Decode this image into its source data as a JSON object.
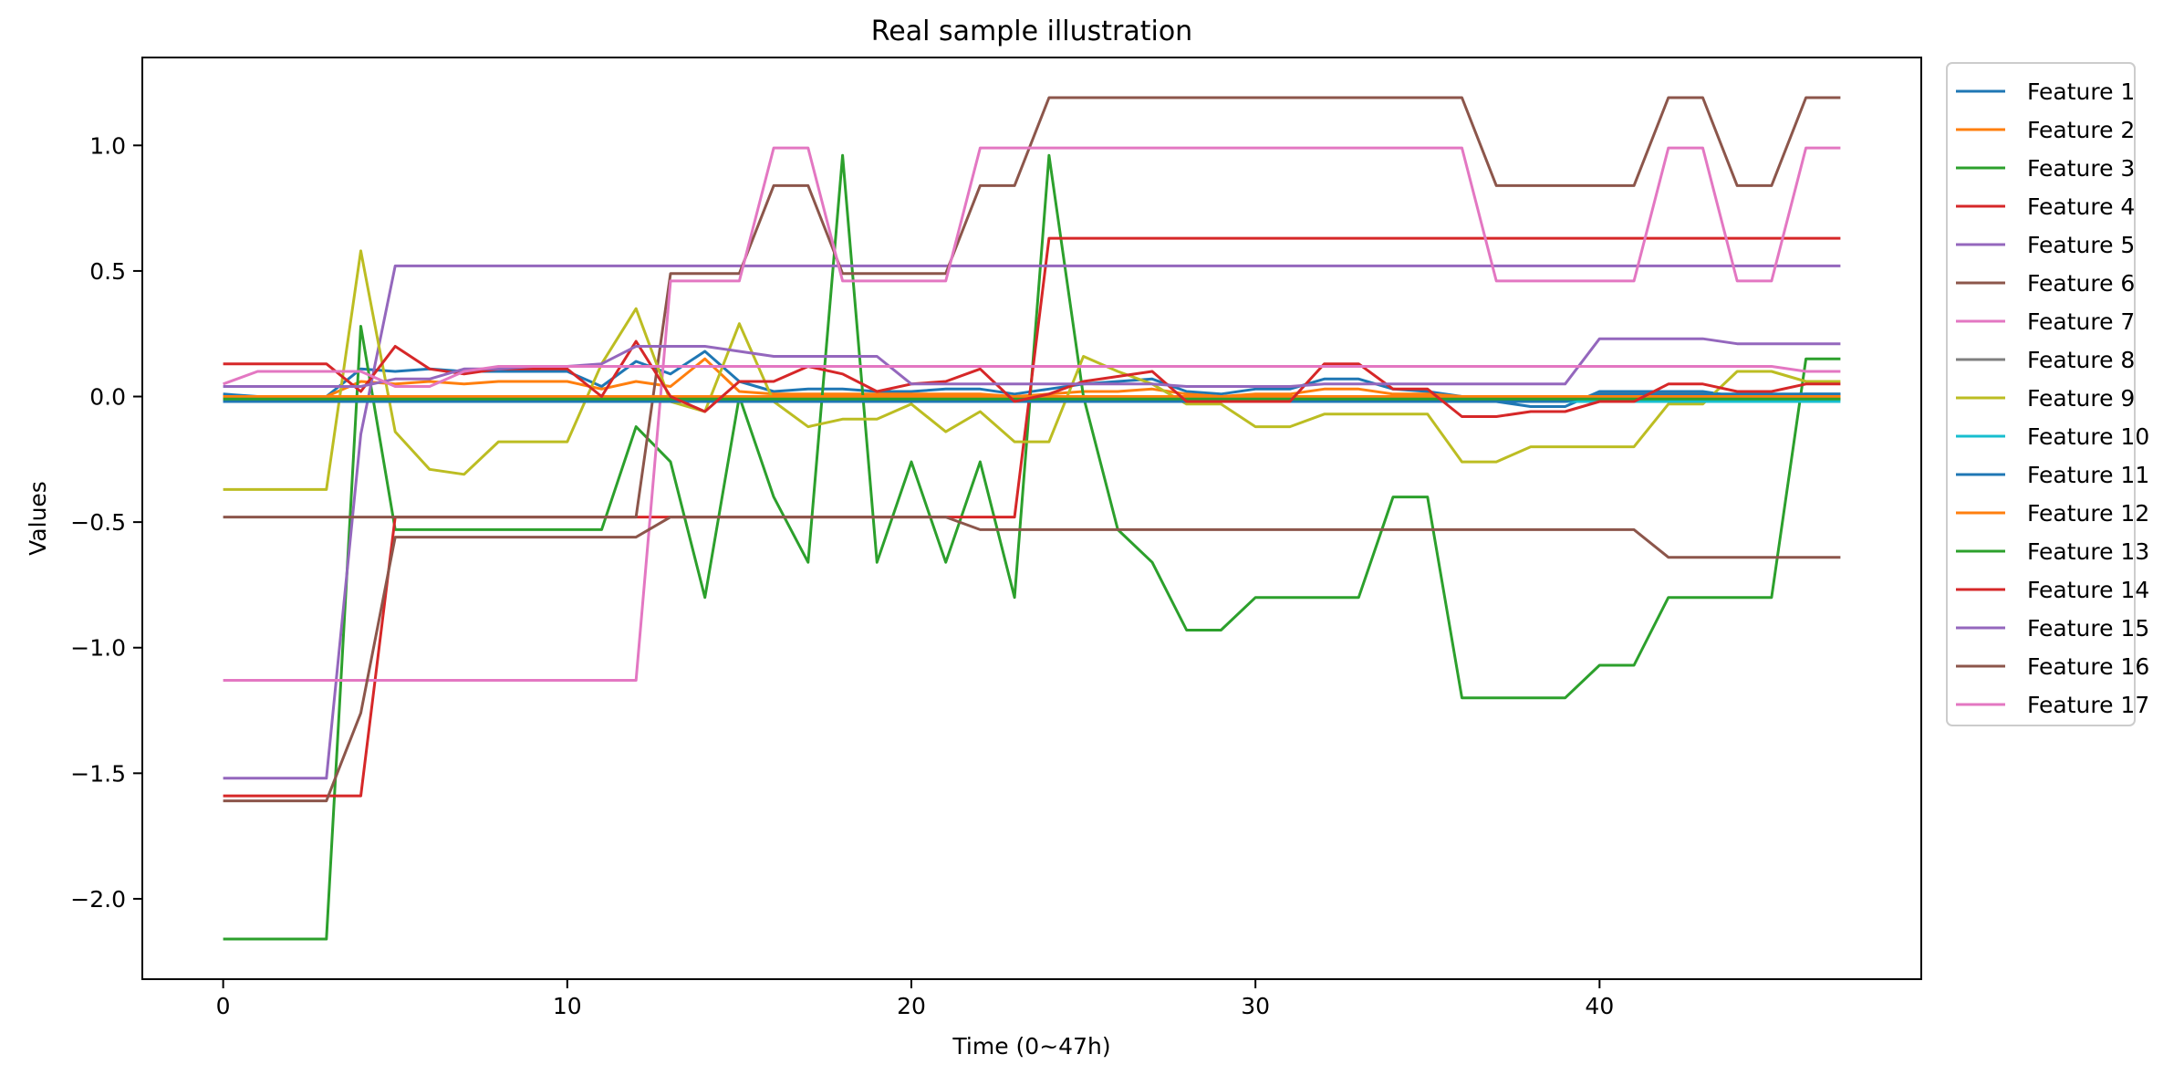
{
  "chart_data": {
    "type": "line",
    "title": "Real sample illustration",
    "xlabel": "Time (0~47h)",
    "ylabel": "Values",
    "xlim": [
      -2.35,
      49.35
    ],
    "ylim": [
      -2.32,
      1.35
    ],
    "xticks": [
      0,
      10,
      20,
      30,
      40
    ],
    "yticks": [
      -2.0,
      -1.5,
      -1.0,
      -0.5,
      0.0,
      0.5,
      1.0
    ],
    "ytick_labels": [
      "−2.0",
      "−1.5",
      "−1.0",
      "−0.5",
      "0.0",
      "0.5",
      "1.0"
    ],
    "grid": false,
    "legend_position": "outside-right-top",
    "series": [
      {
        "name": "Feature 1",
        "color": "#1f77b4",
        "values": [
          0.01,
          0.0,
          0.0,
          0.0,
          0.11,
          0.1,
          0.11,
          0.1,
          0.1,
          0.1,
          0.1,
          0.04,
          0.14,
          0.09,
          0.18,
          0.06,
          0.02,
          0.03,
          0.03,
          0.02,
          0.02,
          0.03,
          0.03,
          0.01,
          0.03,
          0.05,
          0.06,
          0.07,
          0.02,
          0.01,
          0.03,
          0.03,
          0.07,
          0.07,
          0.03,
          0.02,
          0.0,
          -0.02,
          -0.04,
          -0.04,
          0.02,
          0.02,
          0.02,
          0.02,
          0.0,
          0.0,
          0.01,
          0.01
        ]
      },
      {
        "name": "Feature 2",
        "color": "#ff7f0e",
        "values": [
          0.0,
          0.0,
          0.0,
          0.0,
          0.06,
          0.05,
          0.06,
          0.05,
          0.06,
          0.06,
          0.06,
          0.03,
          0.06,
          0.04,
          0.15,
          0.02,
          0.01,
          0.01,
          0.01,
          0.01,
          0.01,
          0.01,
          0.01,
          0.0,
          0.01,
          0.02,
          0.02,
          0.03,
          0.01,
          0.0,
          0.01,
          0.01,
          0.03,
          0.03,
          0.01,
          0.01,
          0.0,
          -0.01,
          -0.02,
          -0.02,
          0.01,
          0.01,
          0.01,
          0.01,
          0.0,
          0.0,
          0.0,
          0.0
        ]
      },
      {
        "name": "Feature 3",
        "color": "#2ca02c",
        "values": [
          -2.16,
          -2.16,
          -2.16,
          -2.16,
          0.28,
          -0.53,
          -0.53,
          -0.53,
          -0.53,
          -0.53,
          -0.53,
          -0.53,
          -0.12,
          -0.26,
          -0.8,
          0.0,
          -0.4,
          -0.66,
          0.96,
          -0.66,
          -0.26,
          -0.66,
          -0.26,
          -0.8,
          0.96,
          0.0,
          -0.53,
          -0.66,
          -0.93,
          -0.93,
          -0.8,
          -0.8,
          -0.8,
          -0.8,
          -0.4,
          -0.4,
          -1.2,
          -1.2,
          -1.2,
          -1.2,
          -1.07,
          -1.07,
          -0.8,
          -0.8,
          -0.8,
          -0.8,
          0.15,
          0.15
        ]
      },
      {
        "name": "Feature 4",
        "color": "#d62728",
        "values": [
          -1.59,
          -1.59,
          -1.59,
          -1.59,
          -1.59,
          -0.48,
          -0.48,
          -0.48,
          -0.48,
          -0.48,
          -0.48,
          -0.48,
          -0.48,
          -0.48,
          -0.48,
          -0.48,
          -0.48,
          -0.48,
          -0.48,
          -0.48,
          -0.48,
          -0.48,
          -0.48,
          -0.48,
          0.63,
          0.63,
          0.63,
          0.63,
          0.63,
          0.63,
          0.63,
          0.63,
          0.63,
          0.63,
          0.63,
          0.63,
          0.63,
          0.63,
          0.63,
          0.63,
          0.63,
          0.63,
          0.63,
          0.63,
          0.63,
          0.63,
          0.63,
          0.63
        ]
      },
      {
        "name": "Feature 5",
        "color": "#9467bd",
        "values": [
          -1.52,
          -1.52,
          -1.52,
          -1.52,
          -0.15,
          0.52,
          0.52,
          0.52,
          0.52,
          0.52,
          0.52,
          0.52,
          0.52,
          0.52,
          0.52,
          0.52,
          0.52,
          0.52,
          0.52,
          0.52,
          0.52,
          0.52,
          0.52,
          0.52,
          0.52,
          0.52,
          0.52,
          0.52,
          0.52,
          0.52,
          0.52,
          0.52,
          0.52,
          0.52,
          0.52,
          0.52,
          0.52,
          0.52,
          0.52,
          0.52,
          0.52,
          0.52,
          0.52,
          0.52,
          0.52,
          0.52,
          0.52,
          0.52
        ]
      },
      {
        "name": "Feature 6",
        "color": "#8c564b",
        "values": [
          -0.48,
          -0.48,
          -0.48,
          -0.48,
          -0.48,
          -0.48,
          -0.48,
          -0.48,
          -0.48,
          -0.48,
          -0.48,
          -0.48,
          -0.48,
          0.49,
          0.49,
          0.49,
          0.84,
          0.84,
          0.49,
          0.49,
          0.49,
          0.49,
          0.84,
          0.84,
          1.19,
          1.19,
          1.19,
          1.19,
          1.19,
          1.19,
          1.19,
          1.19,
          1.19,
          1.19,
          1.19,
          1.19,
          1.19,
          0.84,
          0.84,
          0.84,
          0.84,
          0.84,
          1.19,
          1.19,
          0.84,
          0.84,
          1.19,
          1.19
        ]
      },
      {
        "name": "Feature 7",
        "color": "#e377c2",
        "values": [
          -1.13,
          -1.13,
          -1.13,
          -1.13,
          -1.13,
          -1.13,
          -1.13,
          -1.13,
          -1.13,
          -1.13,
          -1.13,
          -1.13,
          -1.13,
          0.46,
          0.46,
          0.46,
          0.99,
          0.99,
          0.46,
          0.46,
          0.46,
          0.46,
          0.99,
          0.99,
          0.99,
          0.99,
          0.99,
          0.99,
          0.99,
          0.99,
          0.99,
          0.99,
          0.99,
          0.99,
          0.99,
          0.99,
          0.99,
          0.46,
          0.46,
          0.46,
          0.46,
          0.46,
          0.99,
          0.99,
          0.46,
          0.46,
          0.99,
          0.99
        ]
      },
      {
        "name": "Feature 8",
        "color": "#7f7f7f",
        "values": [
          -0.01,
          -0.01,
          -0.01,
          -0.01,
          -0.01,
          -0.01,
          -0.01,
          -0.01,
          -0.01,
          -0.01,
          -0.01,
          -0.01,
          -0.01,
          -0.01,
          -0.01,
          -0.01,
          -0.01,
          -0.01,
          -0.01,
          -0.01,
          -0.01,
          -0.01,
          -0.01,
          -0.01,
          -0.01,
          -0.01,
          -0.01,
          -0.01,
          -0.01,
          -0.01,
          -0.01,
          -0.01,
          -0.01,
          -0.01,
          -0.01,
          -0.01,
          -0.01,
          -0.01,
          -0.01,
          -0.01,
          -0.01,
          -0.01,
          -0.01,
          -0.01,
          -0.01,
          -0.01,
          -0.01,
          -0.01
        ]
      },
      {
        "name": "Feature 9",
        "color": "#bcbd22",
        "values": [
          -0.37,
          -0.37,
          -0.37,
          -0.37,
          0.58,
          -0.14,
          -0.29,
          -0.31,
          -0.18,
          -0.18,
          -0.18,
          0.13,
          0.35,
          -0.02,
          -0.06,
          0.29,
          -0.02,
          -0.12,
          -0.09,
          -0.09,
          -0.03,
          -0.14,
          -0.06,
          -0.18,
          -0.18,
          0.16,
          0.1,
          0.05,
          -0.03,
          -0.03,
          -0.12,
          -0.12,
          -0.07,
          -0.07,
          -0.07,
          -0.07,
          -0.26,
          -0.26,
          -0.2,
          -0.2,
          -0.2,
          -0.2,
          -0.03,
          -0.03,
          0.1,
          0.1,
          0.06,
          0.06
        ]
      },
      {
        "name": "Feature 10",
        "color": "#17becf",
        "values": [
          -0.02,
          -0.02,
          -0.02,
          -0.02,
          -0.02,
          -0.02,
          -0.02,
          -0.02,
          -0.02,
          -0.02,
          -0.02,
          -0.02,
          -0.02,
          -0.02,
          -0.02,
          -0.02,
          -0.02,
          -0.02,
          -0.02,
          -0.02,
          -0.02,
          -0.02,
          -0.02,
          -0.02,
          -0.02,
          -0.02,
          -0.02,
          -0.02,
          -0.02,
          -0.02,
          -0.02,
          -0.02,
          -0.02,
          -0.02,
          -0.02,
          -0.02,
          -0.02,
          -0.02,
          -0.02,
          -0.02,
          -0.02,
          -0.02,
          -0.02,
          -0.02,
          -0.02,
          -0.02,
          -0.02,
          -0.02
        ]
      },
      {
        "name": "Feature 11",
        "color": "#1f77b4",
        "values": [
          -0.02,
          -0.02,
          -0.02,
          -0.02,
          -0.02,
          -0.02,
          -0.02,
          -0.02,
          -0.02,
          -0.02,
          -0.02,
          -0.02,
          -0.02,
          -0.02,
          -0.02,
          -0.02,
          -0.02,
          -0.02,
          -0.02,
          -0.02,
          -0.02,
          -0.02,
          -0.02,
          -0.02,
          -0.02,
          -0.02,
          -0.02,
          -0.02,
          -0.02,
          -0.02,
          -0.02,
          -0.02,
          -0.02,
          -0.02,
          -0.02,
          -0.02,
          -0.02,
          -0.02,
          -0.02,
          -0.02,
          0.01,
          0.01,
          0.01,
          0.01,
          0.01,
          0.01,
          0.01,
          0.01
        ]
      },
      {
        "name": "Feature 12",
        "color": "#ff7f0e",
        "values": [
          0.0,
          0.0,
          0.0,
          0.0,
          0.0,
          0.0,
          0.0,
          0.0,
          0.0,
          0.0,
          0.0,
          0.0,
          0.0,
          0.0,
          0.0,
          0.0,
          0.0,
          0.0,
          0.0,
          0.0,
          0.0,
          0.0,
          0.0,
          0.0,
          0.0,
          0.0,
          0.0,
          0.0,
          0.0,
          0.0,
          0.0,
          0.0,
          0.0,
          0.0,
          0.0,
          0.0,
          0.0,
          0.0,
          0.0,
          0.0,
          0.0,
          0.0,
          0.0,
          0.0,
          0.0,
          0.0,
          0.0,
          0.0
        ]
      },
      {
        "name": "Feature 13",
        "color": "#2ca02c",
        "values": [
          -0.01,
          -0.01,
          -0.01,
          -0.01,
          -0.01,
          -0.01,
          -0.01,
          -0.01,
          -0.01,
          -0.01,
          -0.01,
          -0.01,
          -0.01,
          -0.01,
          -0.01,
          -0.01,
          -0.01,
          -0.01,
          -0.01,
          -0.01,
          -0.01,
          -0.01,
          -0.01,
          -0.01,
          -0.01,
          -0.01,
          -0.01,
          -0.01,
          -0.01,
          -0.01,
          -0.01,
          -0.01,
          -0.01,
          -0.01,
          -0.01,
          -0.01,
          -0.01,
          -0.01,
          -0.01,
          -0.01,
          -0.01,
          -0.01,
          -0.01,
          -0.01,
          -0.01,
          -0.01,
          -0.01,
          -0.01
        ]
      },
      {
        "name": "Feature 14",
        "color": "#d62728",
        "values": [
          0.13,
          0.13,
          0.13,
          0.13,
          0.02,
          0.2,
          0.11,
          0.09,
          0.11,
          0.11,
          0.11,
          0.0,
          0.22,
          0.0,
          -0.06,
          0.06,
          0.06,
          0.12,
          0.09,
          0.02,
          0.05,
          0.06,
          0.11,
          -0.02,
          0.01,
          0.06,
          0.08,
          0.1,
          -0.02,
          -0.02,
          -0.02,
          -0.02,
          0.13,
          0.13,
          0.03,
          0.03,
          -0.08,
          -0.08,
          -0.06,
          -0.06,
          -0.02,
          -0.02,
          0.05,
          0.05,
          0.02,
          0.02,
          0.05,
          0.05
        ]
      },
      {
        "name": "Feature 15",
        "color": "#9467bd",
        "values": [
          0.04,
          0.04,
          0.04,
          0.04,
          0.04,
          0.07,
          0.07,
          0.11,
          0.11,
          0.12,
          0.12,
          0.13,
          0.2,
          0.2,
          0.2,
          0.18,
          0.16,
          0.16,
          0.16,
          0.16,
          0.05,
          0.05,
          0.05,
          0.05,
          0.05,
          0.05,
          0.05,
          0.05,
          0.04,
          0.04,
          0.04,
          0.04,
          0.05,
          0.05,
          0.05,
          0.05,
          0.05,
          0.05,
          0.05,
          0.05,
          0.23,
          0.23,
          0.23,
          0.23,
          0.21,
          0.21,
          0.21,
          0.21
        ]
      },
      {
        "name": "Feature 16",
        "color": "#8c564b",
        "values": [
          -1.61,
          -1.61,
          -1.61,
          -1.61,
          -1.26,
          -0.56,
          -0.56,
          -0.56,
          -0.56,
          -0.56,
          -0.56,
          -0.56,
          -0.56,
          -0.48,
          -0.48,
          -0.48,
          -0.48,
          -0.48,
          -0.48,
          -0.48,
          -0.48,
          -0.48,
          -0.53,
          -0.53,
          -0.53,
          -0.53,
          -0.53,
          -0.53,
          -0.53,
          -0.53,
          -0.53,
          -0.53,
          -0.53,
          -0.53,
          -0.53,
          -0.53,
          -0.53,
          -0.53,
          -0.53,
          -0.53,
          -0.53,
          -0.53,
          -0.64,
          -0.64,
          -0.64,
          -0.64,
          -0.64,
          -0.64
        ]
      },
      {
        "name": "Feature 17",
        "color": "#e377c2",
        "values": [
          0.05,
          0.1,
          0.1,
          0.1,
          0.1,
          0.04,
          0.04,
          0.1,
          0.12,
          0.12,
          0.12,
          0.12,
          0.12,
          0.12,
          0.12,
          0.12,
          0.12,
          0.12,
          0.12,
          0.12,
          0.12,
          0.12,
          0.12,
          0.12,
          0.12,
          0.12,
          0.12,
          0.12,
          0.12,
          0.12,
          0.12,
          0.12,
          0.12,
          0.12,
          0.12,
          0.12,
          0.12,
          0.12,
          0.12,
          0.12,
          0.12,
          0.12,
          0.12,
          0.12,
          0.12,
          0.12,
          0.1,
          0.1
        ]
      }
    ]
  }
}
